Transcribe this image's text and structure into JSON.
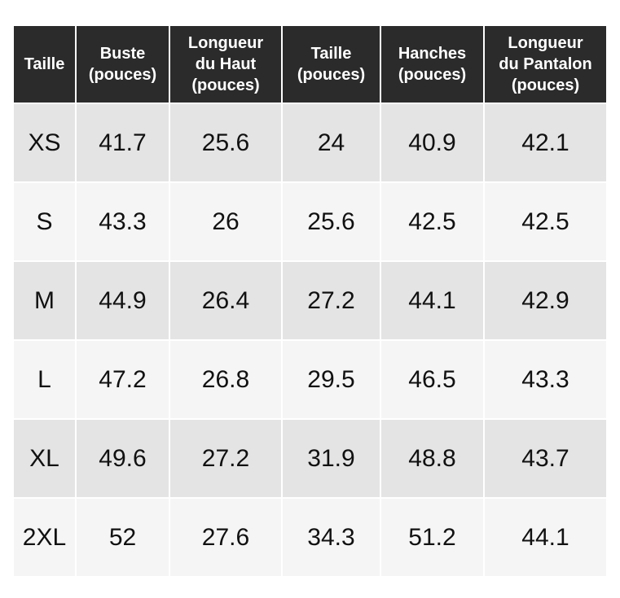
{
  "table": {
    "header": [
      [
        "Taille"
      ],
      [
        "Buste",
        "(pouces)"
      ],
      [
        "Longueur",
        "du Haut",
        "(pouces)"
      ],
      [
        "Taille",
        "(pouces)"
      ],
      [
        "Hanches",
        "(pouces)"
      ],
      [
        "Longueur",
        "du Pantalon",
        "(pouces)"
      ]
    ],
    "rows": [
      [
        "XS",
        "41.7",
        "25.6",
        "24",
        "40.9",
        "42.1"
      ],
      [
        "S",
        "43.3",
        "26",
        "25.6",
        "42.5",
        "42.5"
      ],
      [
        "M",
        "44.9",
        "26.4",
        "27.2",
        "44.1",
        "42.9"
      ],
      [
        "L",
        "47.2",
        "26.8",
        "29.5",
        "46.5",
        "43.3"
      ],
      [
        "XL",
        "49.6",
        "27.2",
        "31.9",
        "48.8",
        "43.7"
      ],
      [
        "2XL",
        "52",
        "27.6",
        "34.3",
        "51.2",
        "44.1"
      ]
    ]
  }
}
